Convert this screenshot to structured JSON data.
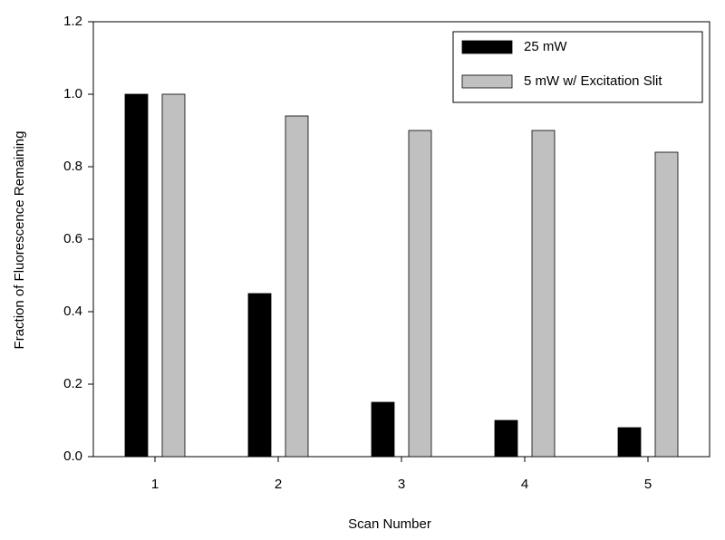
{
  "chart_data": {
    "type": "bar",
    "categories": [
      "1",
      "2",
      "3",
      "4",
      "5"
    ],
    "series": [
      {
        "name": "25 mW",
        "color": "#000000",
        "values": [
          1.0,
          0.45,
          0.15,
          0.1,
          0.08
        ]
      },
      {
        "name": "5 mW w/ Excitation Slit",
        "color": "#c0c0c0",
        "values": [
          1.0,
          0.94,
          0.9,
          0.9,
          0.84
        ]
      }
    ],
    "xlabel": "Scan Number",
    "ylabel": "Fraction of Fluorescence Remaining",
    "ylim": [
      0,
      1.2
    ],
    "yticks": [
      {
        "value": 0,
        "label": "0.0"
      },
      0.2,
      0.4,
      0.6,
      0.8,
      {
        "value": 1,
        "label": "1.0"
      },
      1.2
    ],
    "grid": false,
    "legend": "upper right"
  }
}
